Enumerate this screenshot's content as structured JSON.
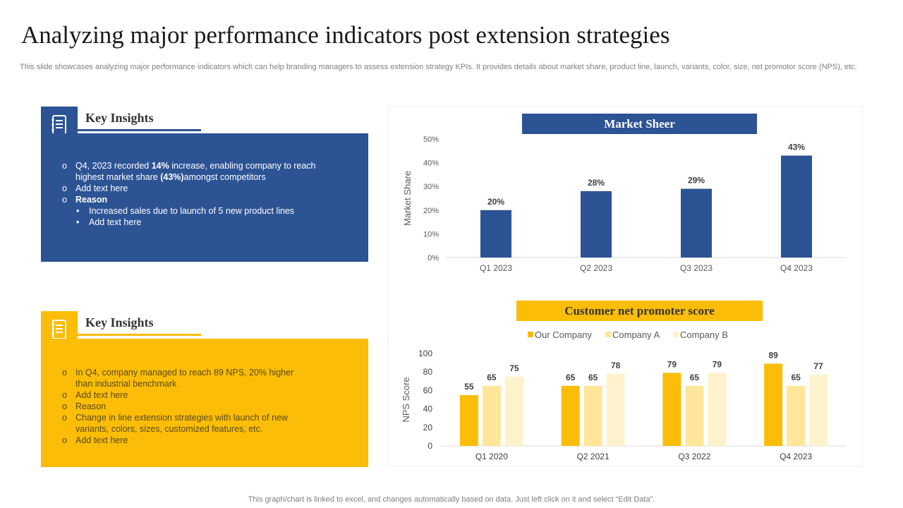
{
  "title": "Analyzing major performance indicators post extension strategies",
  "subtitle": "This slide showcases analyzing major performance indicators which can help branding managers to assess extension strategy KPIs. It provides details about market share, product line, launch, variants, color, size, net promotor score (NPS), etc.",
  "insights_top": {
    "heading": "Key Insights",
    "icon": "document-icon",
    "bullet1_pre": "Q4, 2023 recorded ",
    "bullet1_b1": "14%",
    "bullet1_mid": " increase, enabling company to reach highest market share ",
    "bullet1_b2": "(43%)",
    "bullet1_post": "amongst  competitors",
    "bullet2": "Add text here",
    "bullet3": "Reason",
    "sub1": "Increased sales due to launch of 5 new product lines",
    "sub2": "Add text here"
  },
  "insights_bottom": {
    "heading": "Key Insights",
    "icon": "document-icon",
    "items": [
      "In Q4, company managed to reach 89 NPS, 20% higher than industrial benchmark",
      "Add text here",
      "Reason",
      "Change in line extension strategies with launch of new variants, colors, sizes, customized features, etc.",
      "Add text here"
    ]
  },
  "footer": "This graph/chart is linked to excel, and changes automatically based on data. Just left click on it and select “Edit Data”.",
  "colors": {
    "blue": "#2c5394",
    "gold": "#fbbd08",
    "light_gold": "#ffe699",
    "pale_gold": "#fff2cc"
  },
  "chart_data": [
    {
      "type": "bar",
      "title": "Market Sheer",
      "ylabel": "Market Share",
      "xlabel": "",
      "categories": [
        "Q1 2023",
        "Q2 2023",
        "Q3 2023",
        "Q4 2023"
      ],
      "values": [
        20,
        28,
        29,
        43
      ],
      "value_labels": [
        "20%",
        "28%",
        "29%",
        "43%"
      ],
      "ylim": [
        0,
        50
      ],
      "yticks": [
        "0%",
        "10%",
        "20%",
        "30%",
        "40%",
        "50%"
      ],
      "grid": false
    },
    {
      "type": "bar",
      "title": "Customer net promoter score",
      "ylabel": "NPS Score",
      "xlabel": "",
      "categories": [
        "Q1 2020",
        "Q2 2021",
        "Q3 2022",
        "Q4 2023"
      ],
      "series": [
        {
          "name": "Our Company",
          "values": [
            55,
            65,
            79,
            89
          ]
        },
        {
          "name": "Company A",
          "values": [
            65,
            65,
            65,
            65
          ]
        },
        {
          "name": "Company B",
          "values": [
            75,
            78,
            79,
            77
          ]
        }
      ],
      "ylim": [
        0,
        100
      ],
      "yticks": [
        "0",
        "20",
        "40",
        "60",
        "80",
        "100"
      ],
      "legend": "top-center",
      "grid": false
    }
  ]
}
